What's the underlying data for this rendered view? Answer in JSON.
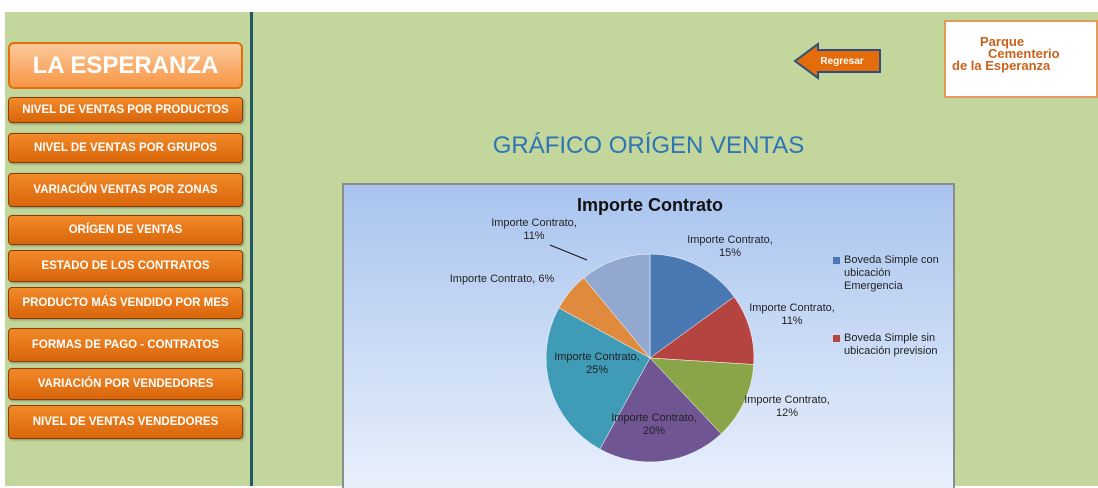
{
  "sidebar": {
    "title": "LA ESPERANZA",
    "items": [
      "NIVEL DE VENTAS POR PRODUCTOS",
      "NIVEL DE VENTAS POR GRUPOS",
      "VARIACIÓN VENTAS POR ZONAS",
      "ORÍGEN DE VENTAS",
      "ESTADO DE LOS CONTRATOS",
      "PRODUCTO MÁS VENDIDO POR MES",
      "FORMAS DE PAGO -  CONTRATOS",
      "VARIACIÓN POR VENDEDORES",
      "NIVEL DE VENTAS VENDEDORES"
    ]
  },
  "back_button": "Regresar",
  "logo": {
    "lines": [
      "Parque",
      "Cementerio",
      "de la Esperanza"
    ]
  },
  "heading": "GRÁFICO ORÍGEN VENTAS",
  "chart_data": {
    "type": "pie",
    "title": "Importe Contrato",
    "categories": [
      "Boveda Simple con ubicación Emergencia",
      "Boveda Simple sin ubicación prevision",
      null,
      null,
      null,
      null,
      null
    ],
    "values": [
      15,
      11,
      12,
      20,
      25,
      6,
      11
    ],
    "value_labels": [
      "Importe Contrato, 15%",
      "Importe Contrato, 11%",
      "Importe Contrato, 12%",
      "Importe Contrato, 20%",
      "Importe Contrato, 25%",
      "Importe Contrato, 6%",
      "Importe Contrato, 11%"
    ],
    "colors": [
      "#4a78b2",
      "#b5433f",
      "#8aa547",
      "#6f5592",
      "#3f9bb6",
      "#e08a3e",
      "#93a8d0"
    ]
  }
}
